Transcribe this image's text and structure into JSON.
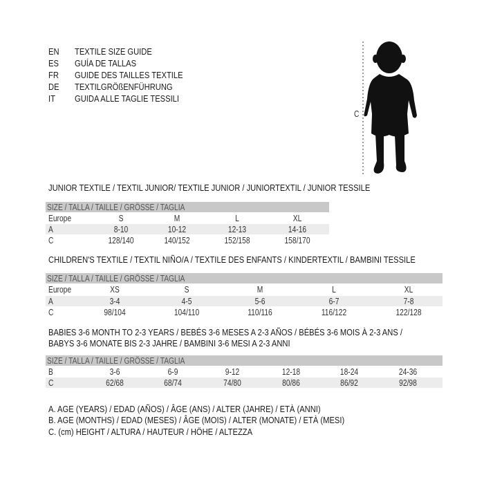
{
  "header": {
    "languages": [
      {
        "code": "EN",
        "text": "TEXTILE SIZE GUIDE"
      },
      {
        "code": "ES",
        "text": "GUÍA DE TALLAS"
      },
      {
        "code": "FR",
        "text": "GUIDE DES TAILLES TEXTILE"
      },
      {
        "code": "DE",
        "text": "TEXTILGRÖßENFÜHRUNG"
      },
      {
        "code": "IT",
        "text": "GUIDA ALLE TAGLIE TESSILI"
      }
    ]
  },
  "figure": {
    "measure_label": "C",
    "icon": "child-silhouette-icon"
  },
  "junior": {
    "title": "JUNIOR TEXTILE / TEXTIL JUNIOR/ TEXTILE JUNIOR / JUNIORTEXTIL / JUNIOR TESSILE",
    "header": "SIZE / TALLA / TAILLE / GRÖSSE / TAGLIA",
    "rows": [
      {
        "label": "Europe",
        "values": [
          "S",
          "M",
          "L",
          "XL"
        ]
      },
      {
        "label": "A",
        "values": [
          "8-10",
          "10-12",
          "12-13",
          "14-16"
        ]
      },
      {
        "label": "C",
        "values": [
          "128/140",
          "140/152",
          "152/158",
          "158/170"
        ]
      }
    ]
  },
  "children": {
    "title": "CHILDREN'S TEXTILE / TEXTIL NIÑO/A / TEXTILE DES ENFANTS / KINDERTEXTIL / BAMBINI TESSILE",
    "header": "SIZE / TALLA / TAILLE / GRÖSSE / TAGLIA",
    "rows": [
      {
        "label": "Europe",
        "values": [
          "XS",
          "S",
          "M",
          "L",
          "XL"
        ]
      },
      {
        "label": "A",
        "values": [
          "3-4",
          "4-5",
          "5-6",
          "6-7",
          "7-8"
        ]
      },
      {
        "label": "C",
        "values": [
          "98/104",
          "104/110",
          "110/116",
          "116/122",
          "122/128"
        ]
      }
    ]
  },
  "babies": {
    "title_line1": "BABIES 3-6 MONTH TO 2-3 YEARS / BEBÉS 3-6 MESES A 2-3 AÑOS / BÉBÉS 3-6 MOIS À 2-3 ANS /",
    "title_line2": "BABYS 3-6 MONATE BIS 2-3 JAHRE / BAMBINI 3-6 MESI A 2-3 ANNI",
    "header": "SIZE / TALLA / TAILLE / GRÖSSE / TAGLIA",
    "rows": [
      {
        "label": "B",
        "values": [
          "3-6",
          "6-9",
          "9-12",
          "12-18",
          "18-24",
          "24-36"
        ]
      },
      {
        "label": "C",
        "values": [
          "62/68",
          "68/74",
          "74/80",
          "80/86",
          "86/92",
          "92/98"
        ]
      }
    ]
  },
  "legend": [
    "A. AGE (YEARS) / EDAD (AÑOS) / ÂGE (ANS) / ALTER (JAHRE) / ETÀ (ANNI)",
    "B. AGE (MONTHS) / EDAD (MESES) / ÂGE (MOIS) / ALTER (MONATE) / ETÀ (MESI)",
    "C. (cm) HEIGHT / ALTURA / HAUTEUR / HÖHE / ALTEZZA"
  ]
}
